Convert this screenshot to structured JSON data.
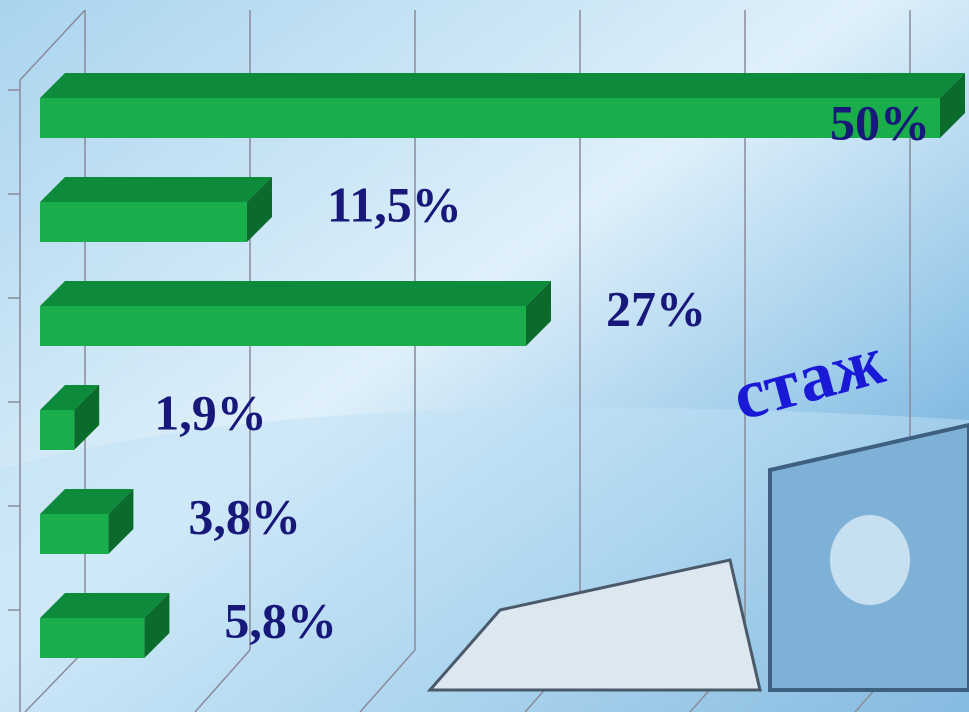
{
  "chart_data": {
    "type": "bar",
    "orientation": "horizontal",
    "annotation": "стаж",
    "categories": [
      null,
      null,
      null,
      null,
      null,
      null
    ],
    "values": [
      50,
      11.5,
      27,
      1.9,
      3.8,
      5.8
    ],
    "value_labels": [
      "50%",
      "11,5%",
      "27%",
      "1,9%",
      "3,8%",
      "5,8%"
    ],
    "color": "#1aad4c",
    "xlim": [
      0,
      50
    ]
  }
}
